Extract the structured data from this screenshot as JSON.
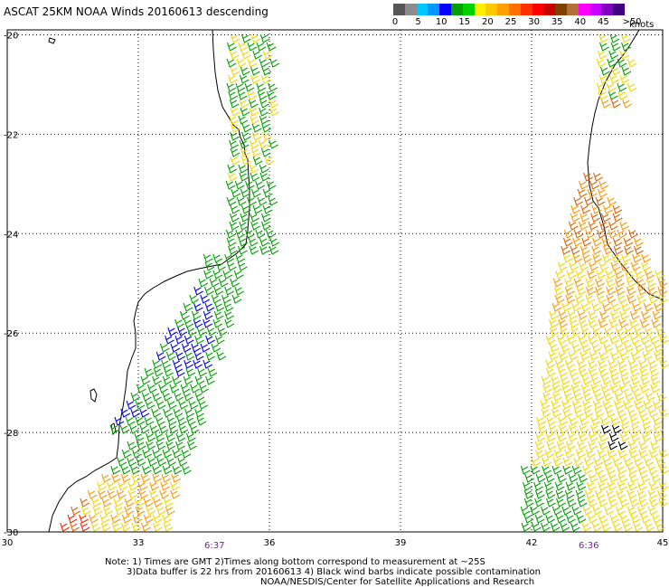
{
  "title": "ASCAT 25KM NOAA Winds 20160613 descending",
  "legend": {
    "ticks": [
      "0",
      "5",
      "10",
      "15",
      "20",
      "25",
      "30",
      "35",
      "40",
      "45",
      ">50"
    ],
    "unit": "knots",
    "colors": [
      "#555555",
      "#8c8c8c",
      "#00c8ff",
      "#0098ff",
      "#0000ff",
      "#00a000",
      "#00d000",
      "#ffee00",
      "#ffc800",
      "#ffa000",
      "#ff7000",
      "#ff3000",
      "#ff0000",
      "#c80000",
      "#804000",
      "#b46e3c",
      "#ff00ff",
      "#c800ff",
      "#8000c0",
      "#400080"
    ]
  },
  "axes": {
    "lat_labels": [
      "-20",
      "-22",
      "-24",
      "-26",
      "-28",
      "-30"
    ],
    "lon_labels": [
      "30",
      "33",
      "36",
      "39",
      "42",
      "45"
    ]
  },
  "pass_times": [
    "6:37",
    "6:36"
  ],
  "notes": {
    "line1": "Note: 1) Times are GMT 2)Times along bottom correspond to measurement at ~25S",
    "line2": "3)Data buffer is 22 hrs from 20160613 4) Black wind barbs indicate possible contamination",
    "line3": "NOAA/NESDIS/Center for Satellite Applications and Research"
  },
  "map": {
    "lat_range": [
      -30,
      -19.9
    ],
    "lon_range": [
      30,
      45
    ],
    "grid": "dotted",
    "wind_colors": {
      "blue": "#0000e6",
      "green": "#00a000",
      "yellow": "#f2d600",
      "orange": "#ff9600",
      "darkorange": "#e06000",
      "red": "#ff2000",
      "black": "#000000"
    }
  }
}
